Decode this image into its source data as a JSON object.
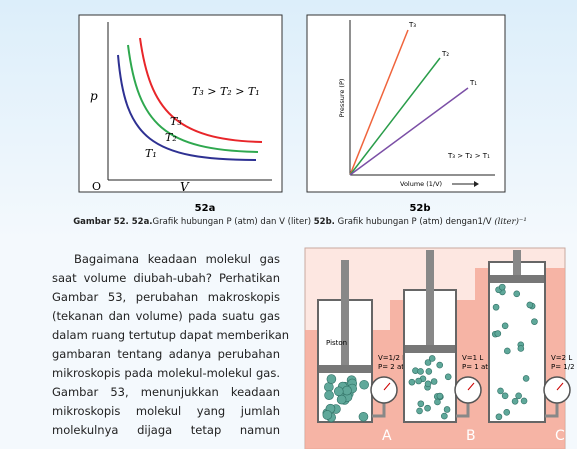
{
  "figure_a": {
    "y_axis": "p",
    "x_axis": "V",
    "origin": "O",
    "relation": "T₃ > T₂ > T₁",
    "curves": [
      "T₃",
      "T₂",
      "T₁"
    ],
    "label": "52a"
  },
  "figure_b": {
    "y_axis": "Pressure (P)",
    "x_axis": "Volume (1/V)",
    "relation": "T₃ > T₂ > T₁",
    "lines": [
      "T₃",
      "T₂",
      "T₁"
    ],
    "label": "52b"
  },
  "caption": {
    "number": "Gambar 52. 52a.",
    "text_a": "Grafik hubungan P (atm) dan V (liter)",
    "number_b": "52b.",
    "text_b": "Grafik hubungan  P (atm) dengan1/V",
    "unit": "(liter)⁻¹"
  },
  "paragraph": [
    "Bagaimana keadaan molekul gas",
    "saat volume diubah-ubah? Perhatikan",
    "Gambar 53, perubahan makroskopis",
    "(tekanan dan volume) pada suatu gas",
    "dalam ruang tertutup dapat memberikan",
    "gambaran tentang adanya perubahan",
    "mikroskopis pada molekul-molekul gas.",
    "Gambar 53, menunjukkan keadaan",
    "mikroskopis molekul yang jumlah",
    "molekulnya dijaga tetap namun"
  ],
  "illustration": {
    "piston": "Piston",
    "cylinders": [
      {
        "letter": "A",
        "volume": "V=1/2 L",
        "pressure": "P= 2 atm"
      },
      {
        "letter": "B",
        "volume": "V=1 L",
        "pressure": "P= 1 atm"
      },
      {
        "letter": "C",
        "volume": "V=2 L",
        "pressure": "P= 1/2 atm"
      }
    ]
  }
}
